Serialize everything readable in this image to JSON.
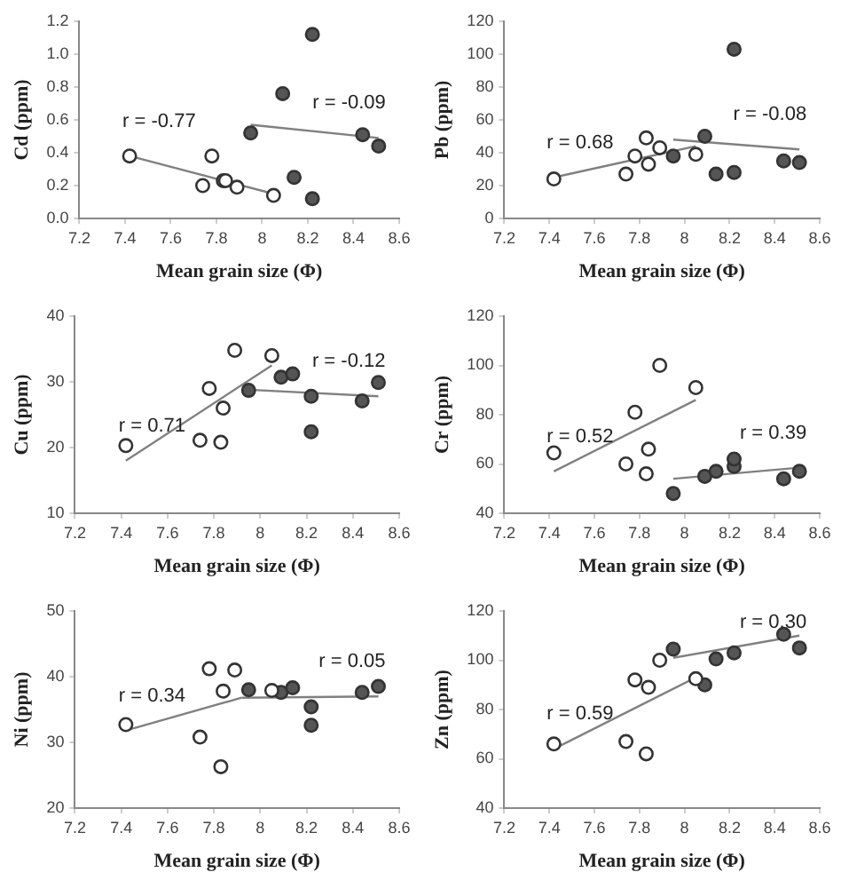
{
  "chart_data": [
    {
      "type": "scatter",
      "xlabel": "Mean grain size (Φ)",
      "ylabel": "Cd (ppm)",
      "xlim": [
        7.2,
        8.6
      ],
      "xticks": [
        7.2,
        7.4,
        7.6,
        7.8,
        8,
        8.2,
        8.4,
        8.6
      ],
      "ylim": [
        0,
        1.2
      ],
      "yticks": [
        {
          "value": 0,
          "label": "0.0"
        },
        {
          "value": 0.2,
          "label": "0.2"
        },
        {
          "value": 0.4,
          "label": "0.4"
        },
        {
          "value": 0.6,
          "label": "0.6"
        },
        {
          "value": 0.8,
          "label": "0.8"
        },
        {
          "value": 1,
          "label": "1.0"
        },
        {
          "value": 1.2,
          "label": "1.2"
        }
      ],
      "series": [
        {
          "type": "line",
          "color": "#808080",
          "x": [
            7.42,
            8.05
          ],
          "values": [
            0.38,
            0.15
          ]
        },
        {
          "type": "line",
          "color": "#808080",
          "x": [
            7.95,
            8.51
          ],
          "values": [
            0.57,
            0.49
          ]
        },
        {
          "type": "scatter",
          "marker": "circle",
          "color": "#ffffff",
          "x": [
            7.42,
            7.74,
            7.78,
            7.83,
            7.84,
            7.89,
            8.05
          ],
          "values": [
            0.38,
            0.2,
            0.38,
            0.23,
            0.23,
            0.19,
            0.14
          ]
        },
        {
          "type": "scatter",
          "marker": "circle",
          "color": "#555555",
          "x": [
            7.95,
            8.09,
            8.14,
            8.22,
            8.22,
            8.44,
            8.51
          ],
          "values": [
            0.52,
            0.76,
            0.25,
            1.12,
            0.12,
            0.51,
            0.44
          ]
        }
      ],
      "annotations": [
        "r = -0.77",
        "r = -0.09"
      ]
    },
    {
      "type": "scatter",
      "xlabel": "Mean grain size (Φ)",
      "ylabel": "Pb (ppm)",
      "xlim": [
        7.2,
        8.6
      ],
      "xticks": [
        7.2,
        7.4,
        7.6,
        7.8,
        8,
        8.2,
        8.4,
        8.6
      ],
      "ylim": [
        0,
        120
      ],
      "yticks": [
        0,
        20,
        40,
        60,
        80,
        100,
        120
      ],
      "series": [
        {
          "type": "line",
          "color": "#808080",
          "x": [
            7.42,
            8.05
          ],
          "values": [
            25,
            44
          ]
        },
        {
          "type": "line",
          "color": "#808080",
          "x": [
            7.95,
            8.51
          ],
          "values": [
            48,
            42
          ]
        },
        {
          "type": "scatter",
          "marker": "circle",
          "color": "#ffffff",
          "x": [
            7.42,
            7.74,
            7.78,
            7.83,
            7.84,
            7.89,
            8.05
          ],
          "values": [
            24,
            27,
            38,
            49,
            33,
            43,
            39
          ]
        },
        {
          "type": "scatter",
          "marker": "circle",
          "color": "#555555",
          "x": [
            7.95,
            8.09,
            8.14,
            8.22,
            8.22,
            8.44,
            8.51
          ],
          "values": [
            38,
            50,
            27,
            103,
            28,
            35,
            34
          ]
        }
      ],
      "annotations": [
        "r = 0.68",
        "r = -0.08"
      ]
    },
    {
      "type": "scatter",
      "xlabel": "Mean grain size (Φ)",
      "ylabel": "Cu (ppm)",
      "xlim": [
        7.2,
        8.6
      ],
      "xticks": [
        7.2,
        7.4,
        7.6,
        7.8,
        8,
        8.2,
        8.4,
        8.6
      ],
      "ylim": [
        10,
        40
      ],
      "yticks": [
        10,
        20,
        30,
        40
      ],
      "series": [
        {
          "type": "line",
          "color": "#808080",
          "x": [
            7.42,
            8.05
          ],
          "values": [
            18,
            32.5
          ]
        },
        {
          "type": "line",
          "color": "#808080",
          "x": [
            7.95,
            8.51
          ],
          "values": [
            28.8,
            27.8
          ]
        },
        {
          "type": "scatter",
          "marker": "circle",
          "color": "#ffffff",
          "x": [
            7.42,
            7.74,
            7.78,
            7.83,
            7.84,
            7.89,
            8.05
          ],
          "values": [
            20.3,
            21.1,
            29,
            20.8,
            26,
            34.8,
            34
          ]
        },
        {
          "type": "scatter",
          "marker": "circle",
          "color": "#555555",
          "x": [
            7.95,
            8.09,
            8.14,
            8.22,
            8.22,
            8.44,
            8.51
          ],
          "values": [
            28.7,
            30.7,
            31.2,
            27.8,
            22.4,
            27.1,
            29.9
          ]
        }
      ],
      "annotations": [
        "r = 0.71",
        "r = -0.12"
      ]
    },
    {
      "type": "scatter",
      "xlabel": "Mean grain size (Φ)",
      "ylabel": "Cr (ppm)",
      "xlim": [
        7.2,
        8.6
      ],
      "xticks": [
        7.2,
        7.4,
        7.6,
        7.8,
        8,
        8.2,
        8.4,
        8.6
      ],
      "ylim": [
        40,
        120
      ],
      "yticks": [
        40,
        60,
        80,
        100,
        120
      ],
      "series": [
        {
          "type": "line",
          "color": "#808080",
          "x": [
            7.42,
            8.05
          ],
          "values": [
            57,
            86
          ]
        },
        {
          "type": "line",
          "color": "#808080",
          "x": [
            7.95,
            8.51
          ],
          "values": [
            54,
            58.5
          ]
        },
        {
          "type": "scatter",
          "marker": "circle",
          "color": "#ffffff",
          "x": [
            7.42,
            7.74,
            7.78,
            7.83,
            7.84,
            7.89,
            8.05
          ],
          "values": [
            64.5,
            60,
            81,
            56,
            66,
            100,
            91
          ]
        },
        {
          "type": "scatter",
          "marker": "circle",
          "color": "#555555",
          "x": [
            7.95,
            8.09,
            8.14,
            8.22,
            8.22,
            8.44,
            8.51
          ],
          "values": [
            48,
            55,
            57,
            59,
            62,
            54,
            57
          ]
        }
      ],
      "annotations": [
        "r = 0.52",
        "r = 0.39"
      ]
    },
    {
      "type": "scatter",
      "xlabel": "Mean grain size (Φ)",
      "ylabel": "Ni (ppm)",
      "xlim": [
        7.2,
        8.6
      ],
      "xticks": [
        7.2,
        7.4,
        7.6,
        7.8,
        8,
        8.2,
        8.4,
        8.6
      ],
      "ylim": [
        20,
        50
      ],
      "yticks": [
        20,
        30,
        40,
        50
      ],
      "series": [
        {
          "type": "line",
          "color": "#808080",
          "x": [
            7.42,
            7.92
          ],
          "values": [
            31.8,
            36.8
          ]
        },
        {
          "type": "line",
          "color": "#808080",
          "x": [
            7.92,
            8.51
          ],
          "values": [
            36.8,
            37
          ]
        },
        {
          "type": "scatter",
          "marker": "circle",
          "color": "#ffffff",
          "x": [
            7.42,
            7.74,
            7.78,
            7.83,
            7.84,
            7.89,
            8.05
          ],
          "values": [
            32.7,
            30.8,
            41.2,
            26.3,
            37.8,
            41,
            37.9
          ]
        },
        {
          "type": "scatter",
          "marker": "circle",
          "color": "#555555",
          "x": [
            7.95,
            8.09,
            8.14,
            8.22,
            8.22,
            8.44,
            8.51
          ],
          "values": [
            38,
            37.6,
            38.3,
            35.4,
            32.6,
            37.6,
            38.5
          ]
        }
      ],
      "annotations": [
        "r = 0.34",
        "r = 0.05"
      ]
    },
    {
      "type": "scatter",
      "xlabel": "Mean grain size (Φ)",
      "ylabel": "Zn (ppm)",
      "xlim": [
        7.2,
        8.6
      ],
      "xticks": [
        7.2,
        7.4,
        7.6,
        7.8,
        8,
        8.2,
        8.4,
        8.6
      ],
      "ylim": [
        40,
        120
      ],
      "yticks": [
        40,
        60,
        80,
        100,
        120
      ],
      "series": [
        {
          "type": "line",
          "color": "#808080",
          "x": [
            7.42,
            8.05
          ],
          "values": [
            64,
            93
          ]
        },
        {
          "type": "line",
          "color": "#808080",
          "x": [
            7.95,
            8.51
          ],
          "values": [
            101,
            110
          ]
        },
        {
          "type": "scatter",
          "marker": "circle",
          "color": "#ffffff",
          "x": [
            7.42,
            7.74,
            7.78,
            7.83,
            7.84,
            7.89,
            8.05
          ],
          "values": [
            66,
            67,
            92,
            62,
            89,
            100,
            92.5
          ]
        },
        {
          "type": "scatter",
          "marker": "circle",
          "color": "#555555",
          "x": [
            7.95,
            8.09,
            8.14,
            8.22,
            8.44,
            8.51
          ],
          "values": [
            104.5,
            90,
            100.5,
            103,
            110.5,
            105
          ]
        }
      ],
      "annotations": [
        "r = 0.59",
        "r = 0.30"
      ]
    }
  ]
}
